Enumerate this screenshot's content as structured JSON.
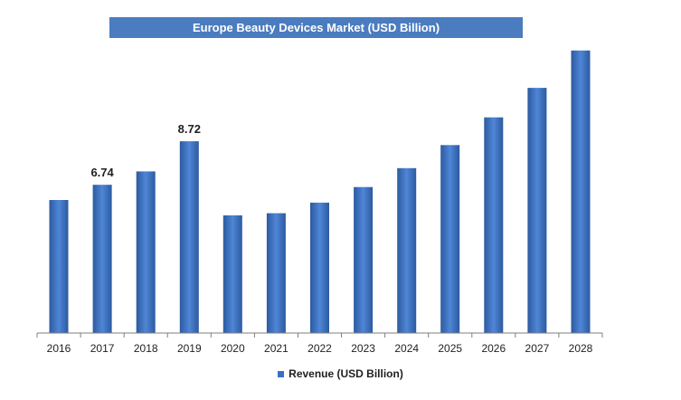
{
  "chart_data": {
    "type": "bar",
    "title": "Europe Beauty Devices Market (USD Billion)",
    "categories": [
      "2016",
      "2017",
      "2018",
      "2019",
      "2020",
      "2021",
      "2022",
      "2023",
      "2024",
      "2025",
      "2026",
      "2027",
      "2028"
    ],
    "series": [
      {
        "name": "Revenue (USD Billion)",
        "values": [
          6.05,
          6.74,
          7.35,
          8.72,
          5.35,
          5.45,
          5.93,
          6.64,
          7.5,
          8.55,
          9.81,
          11.15,
          12.85
        ]
      }
    ],
    "data_labels": [
      {
        "category": "2017",
        "text": "6.74"
      },
      {
        "category": "2019",
        "text": "8.72"
      }
    ],
    "ylim": [
      0,
      13.5
    ],
    "grid": false,
    "legend_position": "bottom",
    "bar_color": "#3b6fc0",
    "bar_color_light": "#4f86d6",
    "bar_color_dark": "#2c5aa0",
    "axis_color": "#7f7f7f"
  }
}
